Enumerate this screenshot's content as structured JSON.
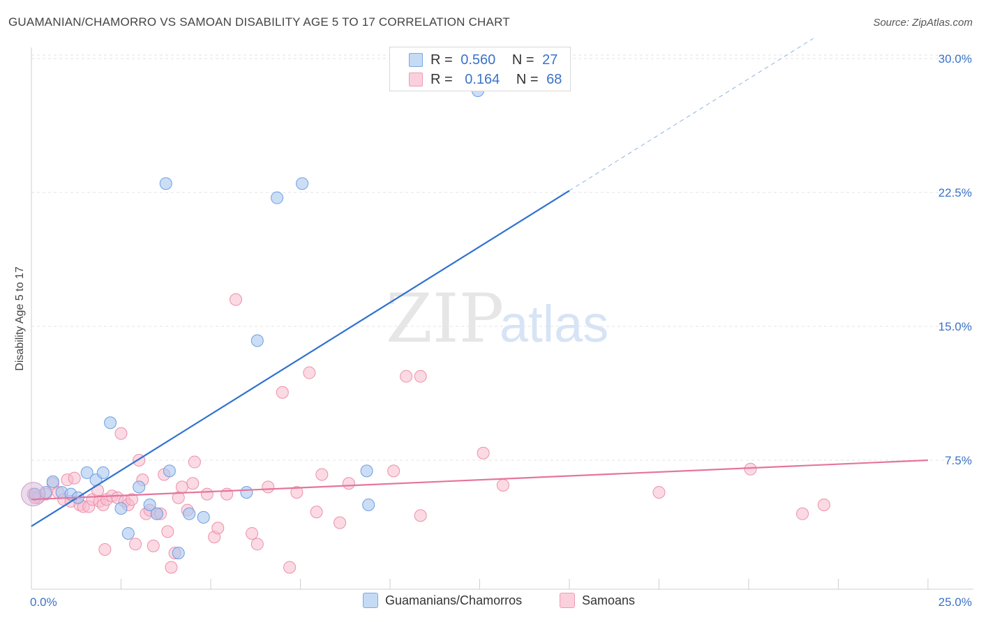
{
  "title": "GUAMANIAN/CHAMORRO VS SAMOAN DISABILITY AGE 5 TO 17 CORRELATION CHART",
  "source": "Source: ZipAtlas.com",
  "watermark": {
    "zip": "ZIP",
    "atlas": "atlas"
  },
  "legend": {
    "row1": {
      "r_label": "R =",
      "r_value": "0.560",
      "n_label": "N =",
      "n_value": "27"
    },
    "row2": {
      "r_label": "R =",
      "r_value": "0.164",
      "n_label": "N =",
      "n_value": "68"
    }
  },
  "bottom_legend": {
    "series1": "Guamanians/Chamorros",
    "series2": "Samoans"
  },
  "colors": {
    "blue_fill": "#a9c8f0",
    "blue_stroke": "#6d9ee0",
    "blue_line": "#2f72d0",
    "pink_fill": "#f7bccd",
    "pink_stroke": "#ec8fab",
    "pink_line": "#e5759b",
    "axis_label": "#3a73c8"
  },
  "chart_data": {
    "type": "scatter",
    "title": "GUAMANIAN/CHAMORRO VS SAMOAN DISABILITY AGE 5 TO 17 CORRELATION CHART",
    "xlabel": "",
    "ylabel": "Disability Age 5 to 17",
    "xlim": [
      0,
      25
    ],
    "ylim": [
      0,
      31
    ],
    "x_tick_labels": [
      "0.0%",
      "25.0%"
    ],
    "y_ticks": [
      7.5,
      15.0,
      22.5,
      30.0
    ],
    "y_tick_labels": [
      "7.5%",
      "15.0%",
      "22.5%",
      "30.0%"
    ],
    "grid": true,
    "legend_position": "top-center",
    "series": [
      {
        "name": "Guamanians/Chamorros",
        "color": "#a9c8f0",
        "r": 0.56,
        "n": 27,
        "trend": {
          "x0": 0,
          "y0": 3.8,
          "x1": 15,
          "y1": 22.6,
          "dashed_to_x": 21.8
        },
        "points": [
          [
            0.1,
            5.6
          ],
          [
            0.4,
            5.7
          ],
          [
            0.6,
            6.3
          ],
          [
            0.85,
            5.7
          ],
          [
            1.1,
            5.6
          ],
          [
            1.3,
            5.4
          ],
          [
            1.55,
            6.8
          ],
          [
            1.8,
            6.4
          ],
          [
            2.0,
            6.8
          ],
          [
            2.2,
            9.6
          ],
          [
            2.5,
            4.8
          ],
          [
            2.7,
            3.4
          ],
          [
            3.0,
            6.0
          ],
          [
            3.3,
            5.0
          ],
          [
            3.5,
            4.5
          ],
          [
            3.75,
            23.0
          ],
          [
            3.85,
            6.9
          ],
          [
            4.1,
            2.3
          ],
          [
            4.4,
            4.5
          ],
          [
            4.8,
            4.3
          ],
          [
            6.0,
            5.7
          ],
          [
            6.3,
            14.2
          ],
          [
            6.85,
            22.2
          ],
          [
            7.55,
            23.0
          ],
          [
            9.35,
            6.9
          ],
          [
            9.4,
            5.0
          ],
          [
            12.45,
            28.2
          ]
        ]
      },
      {
        "name": "Samoans",
        "color": "#f7bccd",
        "r": 0.164,
        "n": 68,
        "trend": {
          "x0": 0,
          "y0": 5.3,
          "x1": 25,
          "y1": 7.5
        },
        "points": [
          [
            0.05,
            5.6
          ],
          [
            0.2,
            5.4
          ],
          [
            0.4,
            5.6
          ],
          [
            0.6,
            6.2
          ],
          [
            0.75,
            5.7
          ],
          [
            0.9,
            5.3
          ],
          [
            1.0,
            6.4
          ],
          [
            1.1,
            5.2
          ],
          [
            1.2,
            6.5
          ],
          [
            1.35,
            5.0
          ],
          [
            1.45,
            4.9
          ],
          [
            1.6,
            4.9
          ],
          [
            1.7,
            5.3
          ],
          [
            1.85,
            5.8
          ],
          [
            1.9,
            5.2
          ],
          [
            2.0,
            5.0
          ],
          [
            2.05,
            2.5
          ],
          [
            2.1,
            5.3
          ],
          [
            2.25,
            5.5
          ],
          [
            2.4,
            5.4
          ],
          [
            2.5,
            9.0
          ],
          [
            2.6,
            5.2
          ],
          [
            2.7,
            5.0
          ],
          [
            2.8,
            5.3
          ],
          [
            2.9,
            2.8
          ],
          [
            3.0,
            7.5
          ],
          [
            3.1,
            6.4
          ],
          [
            3.2,
            4.5
          ],
          [
            3.3,
            4.7
          ],
          [
            3.4,
            2.7
          ],
          [
            3.5,
            4.5
          ],
          [
            3.6,
            4.5
          ],
          [
            3.7,
            6.7
          ],
          [
            3.8,
            3.5
          ],
          [
            3.9,
            1.5
          ],
          [
            4.0,
            2.3
          ],
          [
            4.1,
            5.4
          ],
          [
            4.2,
            6.0
          ],
          [
            4.35,
            4.7
          ],
          [
            4.5,
            6.2
          ],
          [
            4.55,
            7.4
          ],
          [
            4.9,
            5.6
          ],
          [
            5.1,
            3.2
          ],
          [
            5.2,
            3.7
          ],
          [
            5.45,
            5.6
          ],
          [
            5.7,
            16.5
          ],
          [
            6.15,
            3.4
          ],
          [
            6.3,
            2.8
          ],
          [
            6.6,
            6.0
          ],
          [
            7.0,
            11.3
          ],
          [
            7.2,
            1.5
          ],
          [
            7.4,
            5.7
          ],
          [
            7.75,
            12.4
          ],
          [
            7.95,
            4.6
          ],
          [
            8.1,
            6.7
          ],
          [
            8.6,
            4.0
          ],
          [
            8.85,
            6.2
          ],
          [
            10.1,
            6.9
          ],
          [
            10.45,
            12.2
          ],
          [
            10.85,
            12.2
          ],
          [
            10.85,
            4.4
          ],
          [
            12.6,
            7.9
          ],
          [
            13.15,
            6.1
          ],
          [
            17.5,
            5.7
          ],
          [
            20.05,
            7.0
          ],
          [
            21.5,
            4.5
          ],
          [
            22.1,
            5.0
          ],
          [
            0.1,
            5.4
          ]
        ]
      }
    ]
  }
}
